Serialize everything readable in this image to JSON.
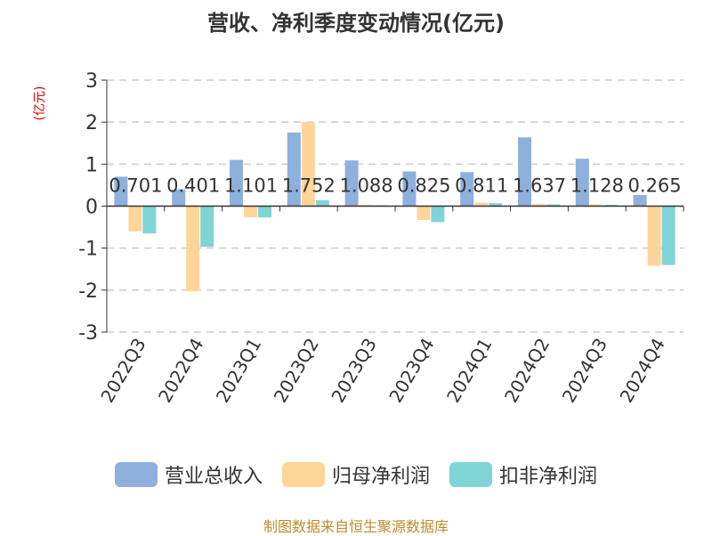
{
  "chart_data": {
    "type": "bar",
    "title": "营收、净利季度变动情况(亿元)",
    "unit_label": "(亿元)",
    "categories": [
      "2022Q3",
      "2022Q4",
      "2023Q1",
      "2023Q2",
      "2023Q3",
      "2023Q4",
      "2024Q1",
      "2024Q2",
      "2024Q3",
      "2024Q4"
    ],
    "series": [
      {
        "name": "营业总收入",
        "color": "#8eb0dc",
        "values": [
          0.701,
          0.401,
          1.101,
          1.752,
          1.088,
          0.825,
          0.811,
          1.637,
          1.128,
          0.265
        ]
      },
      {
        "name": "归母净利润",
        "color": "#ffd59a",
        "values": [
          -0.6,
          -2.03,
          -0.27,
          2.0,
          0.03,
          -0.33,
          0.08,
          0.05,
          0.04,
          -1.42
        ]
      },
      {
        "name": "扣非净利润",
        "color": "#7fd4d6",
        "values": [
          -0.65,
          -0.97,
          -0.27,
          0.14,
          0.02,
          -0.38,
          0.07,
          0.04,
          0.03,
          -1.4
        ]
      }
    ],
    "data_labels": [
      "0.701",
      "0.401",
      "1.101",
      "1.752",
      "1.088",
      "0.825",
      "0.811",
      "1.637",
      "1.128",
      "0.265"
    ],
    "ylim": [
      -3,
      3
    ],
    "yticks": [
      -3,
      -2,
      -1,
      0,
      1,
      2,
      3
    ],
    "grid": true,
    "legend_position": "bottom"
  },
  "footer": {
    "source": "制图数据来自恒生聚源数据库"
  }
}
